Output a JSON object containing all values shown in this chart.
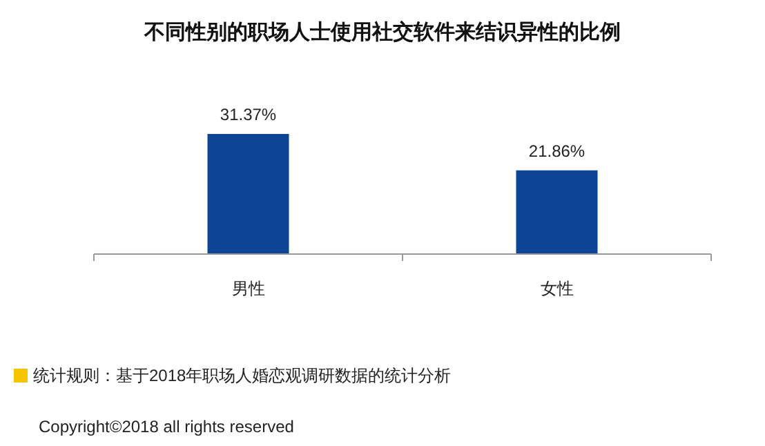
{
  "chart_data": {
    "type": "bar",
    "title": "不同性别的职场人士使用社交软件来结识异性的比例",
    "categories": [
      "男性",
      "女性"
    ],
    "values": [
      31.37,
      21.86
    ],
    "value_labels": [
      "31.37%",
      "21.86%"
    ],
    "color": "#0d4595",
    "annotations": [
      "统计规则：基于2018年职场人婚恋观调研数据的统计分析",
      "Copyright©2018 all rights reserved"
    ]
  }
}
